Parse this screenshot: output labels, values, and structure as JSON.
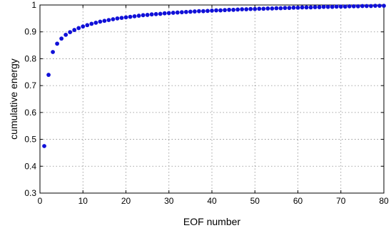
{
  "chart_data": {
    "type": "scatter",
    "xlabel": "EOF number",
    "ylabel": "cumulative energy",
    "xlim": [
      0,
      80
    ],
    "ylim": [
      0.3,
      1.0
    ],
    "xticks": [
      0,
      10,
      20,
      30,
      40,
      50,
      60,
      70,
      80
    ],
    "yticks": [
      0.3,
      0.4,
      0.5,
      0.6,
      0.7,
      0.8,
      0.9,
      1.0
    ],
    "xtick_labels": [
      "0",
      "10",
      "20",
      "30",
      "40",
      "50",
      "60",
      "70",
      "80"
    ],
    "ytick_labels": [
      "0.3",
      "0.4",
      "0.5",
      "0.6",
      "0.7",
      "0.8",
      "0.9",
      "1"
    ],
    "grid": true,
    "marker_color": "#1010d8",
    "series": [
      {
        "x": [
          1,
          2,
          3,
          4,
          5,
          6,
          7,
          8,
          9,
          10,
          11,
          12,
          13,
          14,
          15,
          16,
          17,
          18,
          19,
          20,
          21,
          22,
          23,
          24,
          25,
          26,
          27,
          28,
          29,
          30,
          31,
          32,
          33,
          34,
          35,
          36,
          37,
          38,
          39,
          40,
          41,
          42,
          43,
          44,
          45,
          46,
          47,
          48,
          49,
          50,
          51,
          52,
          53,
          54,
          55,
          56,
          57,
          58,
          59,
          60,
          61,
          62,
          63,
          64,
          65,
          66,
          67,
          68,
          69,
          70,
          71,
          72,
          73,
          74,
          75,
          76,
          77,
          78,
          79,
          80
        ],
        "values": [
          0.475,
          0.74,
          0.825,
          0.856,
          0.875,
          0.889,
          0.899,
          0.907,
          0.914,
          0.92,
          0.925,
          0.93,
          0.934,
          0.938,
          0.941,
          0.944,
          0.947,
          0.95,
          0.952,
          0.954,
          0.956,
          0.958,
          0.96,
          0.962,
          0.963,
          0.965,
          0.966,
          0.967,
          0.969,
          0.97,
          0.971,
          0.972,
          0.973,
          0.974,
          0.975,
          0.976,
          0.977,
          0.977,
          0.978,
          0.979,
          0.98,
          0.98,
          0.981,
          0.982,
          0.982,
          0.983,
          0.984,
          0.984,
          0.985,
          0.985,
          0.986,
          0.986,
          0.987,
          0.987,
          0.988,
          0.988,
          0.989,
          0.989,
          0.99,
          0.99,
          0.991,
          0.991,
          0.991,
          0.992,
          0.992,
          0.993,
          0.993,
          0.993,
          0.994,
          0.994,
          0.994,
          0.995,
          0.995,
          0.995,
          0.996,
          0.996,
          0.996,
          0.997,
          0.997,
          0.997
        ]
      }
    ]
  }
}
